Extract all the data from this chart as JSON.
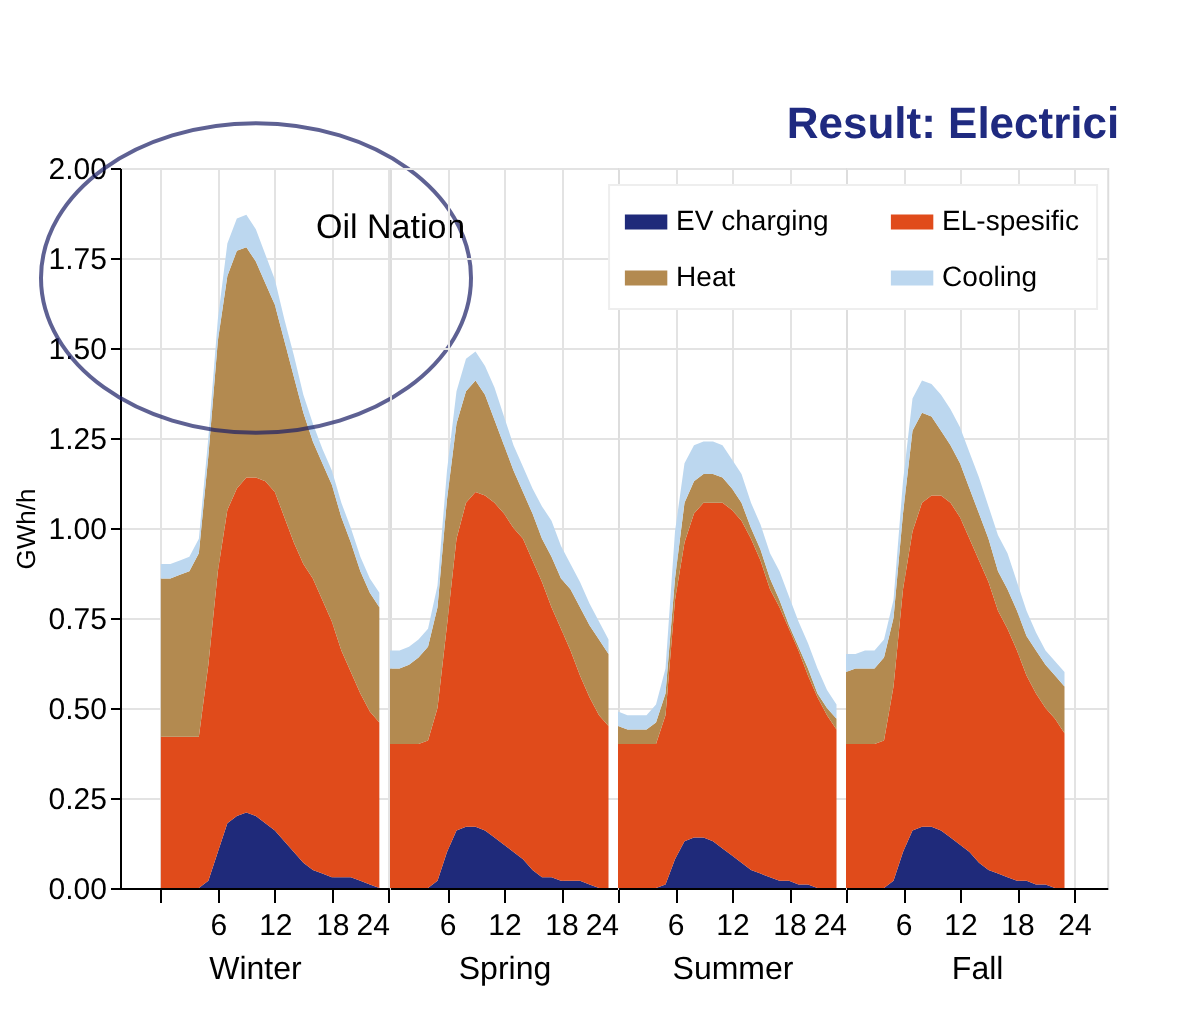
{
  "chart_data": [
    {
      "type": "area",
      "ylabel": "GWh/h",
      "xlabel": "Winter",
      "stacked": true,
      "grid": true,
      "x": [
        0,
        1,
        2,
        3,
        4,
        5,
        6,
        7,
        8,
        9,
        10,
        11,
        12,
        13,
        14,
        15,
        16,
        17,
        18,
        19,
        20,
        21,
        22,
        23
      ],
      "xlim": [
        -4.3,
        24
      ],
      "xticks": [
        {
          "value": 0,
          "label": null
        },
        6,
        12,
        18,
        24
      ],
      "ylim": [
        0,
        2
      ],
      "yticks": [
        {
          "value": 0,
          "label": "0.00"
        },
        {
          "value": 0.25,
          "label": "0.25"
        },
        {
          "value": 0.5,
          "label": "0.50"
        },
        {
          "value": 0.75,
          "label": "0.75"
        },
        {
          "value": 1,
          "label": "1.00"
        },
        {
          "value": 1.25,
          "label": "1.25"
        },
        {
          "value": 1.5,
          "label": "1.50"
        },
        {
          "value": 1.75,
          "label": "1.75"
        },
        {
          "value": 2,
          "label": "2.00"
        }
      ],
      "annotations": [
        "Oil Nation"
      ],
      "series": [
        {
          "color": "#1f2a7a",
          "values": [
            0,
            0,
            0,
            0,
            0,
            0.02,
            0.1,
            0.18,
            0.2,
            0.21,
            0.2,
            0.18,
            0.16,
            0.13,
            0.1,
            0.07,
            0.05,
            0.04,
            0.03,
            0.03,
            0.03,
            0.02,
            0.01,
            0
          ]
        },
        {
          "color": "#e04b1b",
          "values": [
            0.42,
            0.42,
            0.42,
            0.42,
            0.42,
            0.6,
            0.78,
            0.87,
            0.91,
            0.93,
            0.94,
            0.95,
            0.94,
            0.9,
            0.86,
            0.83,
            0.81,
            0.76,
            0.71,
            0.63,
            0.57,
            0.52,
            0.48,
            0.46
          ]
        },
        {
          "color": "#b38a50",
          "values": [
            0.44,
            0.44,
            0.45,
            0.46,
            0.51,
            0.58,
            0.64,
            0.65,
            0.66,
            0.64,
            0.6,
            0.55,
            0.52,
            0.49,
            0.46,
            0.42,
            0.38,
            0.38,
            0.38,
            0.37,
            0.36,
            0.34,
            0.33,
            0.32
          ]
        },
        {
          "color": "#bcd7ef",
          "values": [
            0.04,
            0.04,
            0.04,
            0.04,
            0.04,
            0.05,
            0.06,
            0.09,
            0.09,
            0.09,
            0.09,
            0.08,
            0.07,
            0.06,
            0.06,
            0.05,
            0.05,
            0.04,
            0.04,
            0.04,
            0.04,
            0.04,
            0.04,
            0.04
          ]
        }
      ]
    },
    {
      "type": "area",
      "xlabel": "Spring",
      "stacked": true,
      "grid": true,
      "tick_labels": "x",
      "x": [
        0,
        1,
        2,
        3,
        4,
        5,
        6,
        7,
        8,
        9,
        10,
        11,
        12,
        13,
        14,
        15,
        16,
        17,
        18,
        19,
        20,
        21,
        22,
        23
      ],
      "xlim": [
        0,
        24
      ],
      "xticks": [
        6,
        12,
        18,
        24
      ],
      "ylim": [
        0,
        2
      ],
      "yticks": [
        0,
        0.25,
        0.5,
        0.75,
        1,
        1.25,
        1.5,
        1.75,
        2
      ],
      "series": [
        {
          "color": "#1f2a7a",
          "values": [
            0,
            0,
            0,
            0,
            0,
            0.02,
            0.1,
            0.16,
            0.17,
            0.17,
            0.16,
            0.14,
            0.12,
            0.1,
            0.08,
            0.05,
            0.03,
            0.03,
            0.02,
            0.02,
            0.02,
            0.01,
            0,
            0
          ]
        },
        {
          "color": "#e04b1b",
          "values": [
            0.4,
            0.4,
            0.4,
            0.4,
            0.41,
            0.48,
            0.63,
            0.81,
            0.9,
            0.93,
            0.93,
            0.93,
            0.92,
            0.9,
            0.89,
            0.86,
            0.82,
            0.75,
            0.7,
            0.64,
            0.57,
            0.52,
            0.48,
            0.45
          ]
        },
        {
          "color": "#b38a50",
          "values": [
            0.21,
            0.21,
            0.22,
            0.24,
            0.26,
            0.28,
            0.35,
            0.32,
            0.31,
            0.31,
            0.28,
            0.23,
            0.19,
            0.16,
            0.13,
            0.13,
            0.12,
            0.14,
            0.14,
            0.17,
            0.19,
            0.2,
            0.21,
            0.2
          ]
        },
        {
          "color": "#bcd7ef",
          "values": [
            0.05,
            0.05,
            0.05,
            0.05,
            0.05,
            0.06,
            0.08,
            0.09,
            0.09,
            0.08,
            0.08,
            0.09,
            0.08,
            0.07,
            0.07,
            0.07,
            0.09,
            0.1,
            0.09,
            0.07,
            0.07,
            0.06,
            0.05,
            0.04
          ]
        }
      ]
    },
    {
      "type": "area",
      "xlabel": "Summer",
      "stacked": true,
      "grid": true,
      "tick_labels": "x",
      "legend": "top right",
      "x": [
        0,
        1,
        2,
        3,
        4,
        5,
        6,
        7,
        8,
        9,
        10,
        11,
        12,
        13,
        14,
        15,
        16,
        17,
        18,
        19,
        20,
        21,
        22,
        23
      ],
      "xlim": [
        0,
        24
      ],
      "xticks": [
        6,
        12,
        18,
        24
      ],
      "ylim": [
        0,
        2
      ],
      "yticks": [
        0,
        0.25,
        0.5,
        0.75,
        1,
        1.25,
        1.5,
        1.75,
        2
      ],
      "series": [
        {
          "name": "EV charging",
          "color": "#1f2a7a",
          "values": [
            0,
            0,
            0,
            0,
            0,
            0.01,
            0.08,
            0.13,
            0.14,
            0.14,
            0.13,
            0.11,
            0.09,
            0.07,
            0.05,
            0.04,
            0.03,
            0.02,
            0.02,
            0.01,
            0.01,
            0,
            0,
            0
          ]
        },
        {
          "name": "EL-spesific",
          "color": "#e04b1b",
          "values": [
            0.4,
            0.4,
            0.4,
            0.4,
            0.4,
            0.47,
            0.72,
            0.83,
            0.9,
            0.93,
            0.94,
            0.96,
            0.96,
            0.95,
            0.92,
            0.87,
            0.8,
            0.76,
            0.7,
            0.65,
            0.58,
            0.53,
            0.48,
            0.44
          ]
        },
        {
          "name": "Heat",
          "color": "#b38a50",
          "values": [
            0.05,
            0.04,
            0.04,
            0.04,
            0.06,
            0.06,
            0.06,
            0.11,
            0.09,
            0.08,
            0.08,
            0.07,
            0.06,
            0.05,
            0.03,
            0.03,
            0.03,
            0.02,
            0.01,
            0.01,
            0.02,
            0.01,
            0.02,
            0.03
          ]
        },
        {
          "name": "Cooling",
          "color": "#bcd7ef",
          "values": [
            0.04,
            0.04,
            0.04,
            0.04,
            0.05,
            0.07,
            0.13,
            0.11,
            0.1,
            0.09,
            0.09,
            0.09,
            0.08,
            0.08,
            0.07,
            0.07,
            0.07,
            0.08,
            0.08,
            0.07,
            0.07,
            0.07,
            0.05,
            0.04
          ]
        }
      ]
    },
    {
      "type": "area",
      "title": "Result: Electrici",
      "xlabel": "Fall",
      "stacked": true,
      "grid": true,
      "tick_labels": "x",
      "x": [
        0,
        1,
        2,
        3,
        4,
        5,
        6,
        7,
        8,
        9,
        10,
        11,
        12,
        13,
        14,
        15,
        16,
        17,
        18,
        19,
        20,
        21,
        22,
        23
      ],
      "xlim": [
        0,
        27.5
      ],
      "xticks": [
        6,
        12,
        18,
        24
      ],
      "ylim": [
        0,
        2
      ],
      "yticks": [
        0,
        0.25,
        0.5,
        0.75,
        1,
        1.25,
        1.5,
        1.75,
        2
      ],
      "series": [
        {
          "color": "#1f2a7a",
          "values": [
            0,
            0,
            0,
            0,
            0,
            0.02,
            0.1,
            0.16,
            0.17,
            0.17,
            0.16,
            0.14,
            0.12,
            0.1,
            0.07,
            0.05,
            0.04,
            0.03,
            0.02,
            0.02,
            0.01,
            0.01,
            0,
            0
          ]
        },
        {
          "color": "#e04b1b",
          "values": [
            0.4,
            0.4,
            0.4,
            0.4,
            0.41,
            0.54,
            0.73,
            0.83,
            0.9,
            0.92,
            0.93,
            0.93,
            0.91,
            0.87,
            0.84,
            0.8,
            0.73,
            0.69,
            0.64,
            0.57,
            0.53,
            0.49,
            0.47,
            0.43
          ]
        },
        {
          "color": "#b38a50",
          "values": [
            0.2,
            0.21,
            0.21,
            0.21,
            0.23,
            0.19,
            0.21,
            0.28,
            0.25,
            0.22,
            0.18,
            0.16,
            0.15,
            0.14,
            0.13,
            0.12,
            0.11,
            0.11,
            0.11,
            0.11,
            0.12,
            0.12,
            0.12,
            0.13
          ]
        },
        {
          "color": "#bcd7ef",
          "values": [
            0.05,
            0.04,
            0.05,
            0.05,
            0.05,
            0.05,
            0.09,
            0.09,
            0.09,
            0.09,
            0.1,
            0.1,
            0.1,
            0.1,
            0.1,
            0.09,
            0.1,
            0.1,
            0.08,
            0.07,
            0.05,
            0.04,
            0.04,
            0.04
          ]
        }
      ]
    }
  ]
}
